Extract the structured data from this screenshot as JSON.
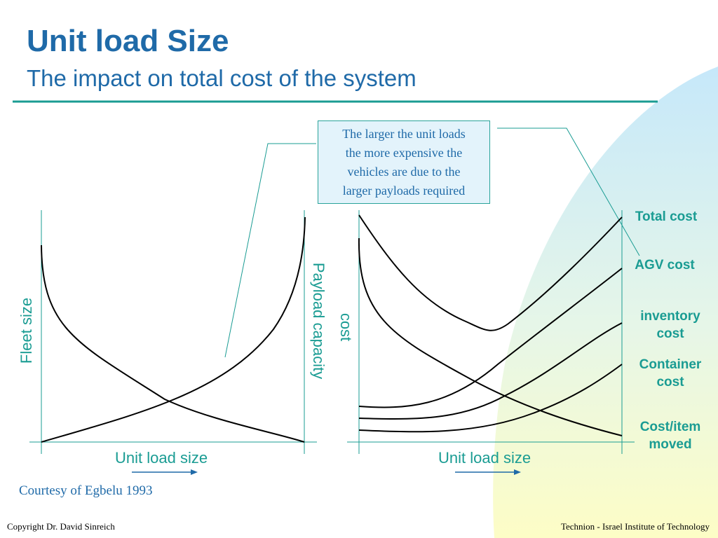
{
  "slide": {
    "title": "Unit load Size",
    "subtitle": "The impact on total cost of the system",
    "callout": {
      "lines": [
        "The larger the unit loads",
        "the more expensive the",
        "vehicles are due to the",
        "larger payloads required"
      ]
    },
    "left_chart": {
      "y_label_left": "Fleet size",
      "y_label_right": "Payload capacity",
      "x_label": "Unit load size"
    },
    "right_chart": {
      "y_label": "cost",
      "x_label": "Unit load size",
      "legend": {
        "total_cost": "Total cost",
        "agv_cost": "AGV cost",
        "inventory_cost_line1": "inventory",
        "inventory_cost_line2": "cost",
        "container_cost_line1": "Container",
        "container_cost_line2": "cost",
        "cost_item_line1": "Cost/item",
        "cost_item_line2": "moved"
      }
    },
    "courtesy": "Courtesy of Egbelu 1993",
    "footer_left": "Copyright Dr. David Sinreich",
    "footer_right": "Technion - Israel Institute of Technology"
  },
  "colors": {
    "title": "#1f6aa8",
    "teal": "#1a9c93",
    "curve": "#000000",
    "callout_bg": "#e3f3fb"
  }
}
